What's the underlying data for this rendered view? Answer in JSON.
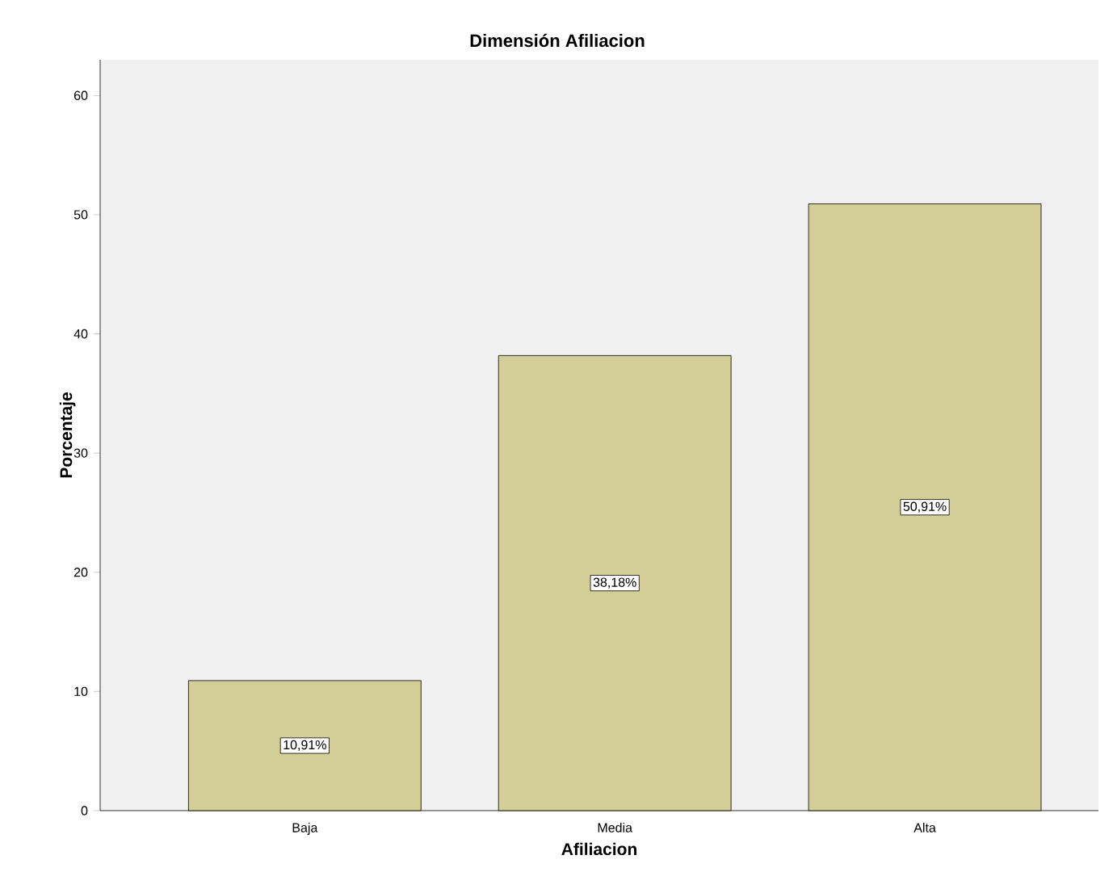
{
  "chart_data": {
    "type": "bar",
    "title": "Dimensión Afiliacion",
    "xlabel": "Afiliacion",
    "ylabel": "Porcentaje",
    "categories": [
      "Baja",
      "Media",
      "Alta"
    ],
    "values": [
      10.91,
      38.18,
      50.91
    ],
    "value_labels": [
      "10,91%",
      "38,18%",
      "50,91%"
    ],
    "color": "#d3ce98",
    "ylim": [
      0,
      63
    ],
    "yticks": [
      0,
      10,
      20,
      30,
      40,
      50,
      60
    ],
    "grid": false
  }
}
